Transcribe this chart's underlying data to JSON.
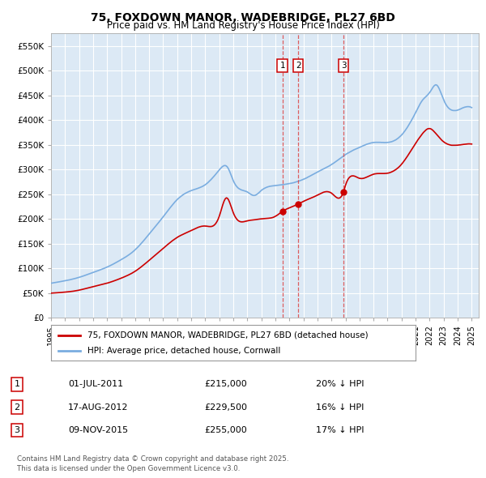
{
  "title": "75, FOXDOWN MANOR, WADEBRIDGE, PL27 6BD",
  "subtitle": "Price paid vs. HM Land Registry's House Price Index (HPI)",
  "legend_red": "75, FOXDOWN MANOR, WADEBRIDGE, PL27 6BD (detached house)",
  "legend_blue": "HPI: Average price, detached house, Cornwall",
  "footer1": "Contains HM Land Registry data © Crown copyright and database right 2025.",
  "footer2": "This data is licensed under the Open Government Licence v3.0.",
  "sales": [
    {
      "label": "1",
      "date": "01-JUL-2011",
      "date_num": 2011.5,
      "price": 215000,
      "pct": "20% ↓ HPI"
    },
    {
      "label": "2",
      "date": "17-AUG-2012",
      "date_num": 2012.63,
      "price": 229500,
      "pct": "16% ↓ HPI"
    },
    {
      "label": "3",
      "date": "09-NOV-2015",
      "date_num": 2015.86,
      "price": 255000,
      "pct": "17% ↓ HPI"
    }
  ],
  "ylim": [
    0,
    575000
  ],
  "yticks": [
    0,
    50000,
    100000,
    150000,
    200000,
    250000,
    300000,
    350000,
    400000,
    450000,
    500000,
    550000
  ],
  "ytick_labels": [
    "£0",
    "£50K",
    "£100K",
    "£150K",
    "£200K",
    "£250K",
    "£300K",
    "£350K",
    "£400K",
    "£450K",
    "£500K",
    "£550K"
  ],
  "xlim_start": 1995.0,
  "xlim_end": 2025.5,
  "bg_color": "#ffffff",
  "plot_bg_color": "#dce9f5",
  "red_color": "#cc0000",
  "blue_color": "#7aade0",
  "grid_color": "#ffffff",
  "vline_color": "#dd4444"
}
